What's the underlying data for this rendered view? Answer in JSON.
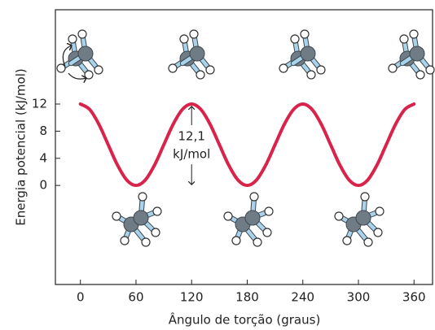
{
  "chart_data": {
    "type": "line",
    "x": [
      0,
      10,
      20,
      30,
      40,
      50,
      60,
      70,
      80,
      90,
      100,
      110,
      120,
      130,
      140,
      150,
      160,
      170,
      180,
      190,
      200,
      210,
      220,
      230,
      240,
      250,
      260,
      270,
      280,
      290,
      300,
      310,
      320,
      330,
      340,
      350,
      360
    ],
    "values": [
      12,
      11.2,
      9,
      6,
      3,
      0.8,
      0,
      0.8,
      3,
      6,
      9,
      11.2,
      12,
      11.2,
      9,
      6,
      3,
      0.8,
      0,
      0.8,
      3,
      6,
      9,
      11.2,
      12,
      11.2,
      9,
      6,
      3,
      0.8,
      0,
      0.8,
      3,
      6,
      9,
      11.2,
      12
    ],
    "color": "#d8234b",
    "xlabel": "Ângulo de torção (graus)",
    "ylabel": "Energia potencial (kJ/mol)",
    "xlim": [
      -27,
      380
    ],
    "ylim": [
      -14.6,
      25.9
    ],
    "xticks": [
      0,
      60,
      120,
      180,
      240,
      300,
      360
    ],
    "yticks": [
      0,
      4,
      8,
      12
    ],
    "annotation": {
      "x": 120,
      "lines": [
        "12,1",
        "kJ/mol"
      ]
    },
    "grid": false
  }
}
